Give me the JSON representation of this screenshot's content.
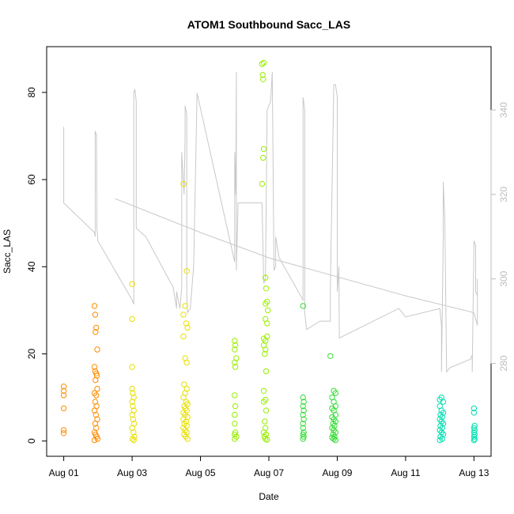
{
  "chart_data": {
    "type": "scatter",
    "title": "ATOM1 Southbound Sacc_LAS",
    "xlabel": "Date",
    "ylabel": "Sacc_LAS",
    "x_range_days": [
      -0.5,
      12.5
    ],
    "ylim": [
      -3.5,
      90.5
    ],
    "y2lim": [
      258,
      355
    ],
    "x_ticks": [
      {
        "day": 0,
        "label": "Aug 01"
      },
      {
        "day": 2,
        "label": "Aug 03"
      },
      {
        "day": 4,
        "label": "Aug 05"
      },
      {
        "day": 6,
        "label": "Aug 07"
      },
      {
        "day": 8,
        "label": "Aug 09"
      },
      {
        "day": 10,
        "label": "Aug 11"
      },
      {
        "day": 12,
        "label": "Aug 13"
      }
    ],
    "y_ticks": [
      0,
      20,
      40,
      60,
      80
    ],
    "y2_ticks": [
      280,
      300,
      320,
      340
    ],
    "y2_color": "#bdbdbd",
    "grid": false,
    "secondary_series": {
      "color": "#c8c8c8",
      "points": [
        [
          0.0,
          336
        ],
        [
          0.0,
          318
        ],
        [
          0.9,
          311
        ],
        [
          0.92,
          310
        ],
        [
          0.92,
          335
        ],
        [
          0.96,
          334
        ],
        [
          0.97,
          312
        ],
        [
          1.0,
          309
        ],
        [
          2.0,
          295
        ],
        [
          2.05,
          294
        ],
        [
          2.05,
          344
        ],
        [
          2.08,
          345
        ],
        [
          2.12,
          342
        ],
        [
          2.12,
          340
        ],
        [
          2.12,
          312
        ],
        [
          2.4,
          310
        ],
        [
          2.8,
          304
        ],
        [
          3.2,
          298
        ],
        [
          3.3,
          293
        ],
        [
          3.3,
          297
        ],
        [
          3.4,
          293
        ],
        [
          3.45,
          298
        ],
        [
          3.45,
          330
        ],
        [
          3.52,
          320
        ],
        [
          3.55,
          334
        ],
        [
          3.55,
          341
        ],
        [
          3.6,
          339
        ],
        [
          3.6,
          296
        ],
        [
          3.62,
          292
        ],
        [
          3.7,
          293
        ],
        [
          3.8,
          303
        ],
        [
          3.9,
          344
        ],
        [
          5.0,
          304
        ],
        [
          5.0,
          330
        ],
        [
          5.03,
          320
        ],
        [
          5.05,
          349
        ],
        [
          5.05,
          302
        ],
        [
          5.1,
          318
        ],
        [
          5.5,
          318
        ],
        [
          5.8,
          318
        ],
        [
          5.85,
          299
        ],
        [
          5.9,
          300
        ],
        [
          5.95,
          340
        ],
        [
          6.05,
          342
        ],
        [
          6.1,
          349
        ],
        [
          6.15,
          302
        ],
        [
          6.2,
          303
        ],
        [
          6.2,
          310
        ],
        [
          6.3,
          305
        ],
        [
          7.0,
          295
        ],
        [
          7.0,
          343
        ],
        [
          7.05,
          340
        ],
        [
          7.05,
          292
        ],
        [
          7.1,
          288
        ],
        [
          7.5,
          290
        ],
        [
          7.8,
          290
        ],
        [
          7.8,
          298
        ],
        [
          7.9,
          346
        ],
        [
          7.95,
          346
        ],
        [
          8.0,
          343
        ],
        [
          8.0,
          297
        ],
        [
          8.05,
          303
        ],
        [
          8.06,
          286
        ],
        [
          9.8,
          293
        ],
        [
          9.9,
          292
        ],
        [
          10.0,
          291
        ],
        [
          11.0,
          293
        ],
        [
          11.05,
          289
        ],
        [
          11.05,
          278
        ],
        [
          11.1,
          310
        ],
        [
          11.1,
          323
        ],
        [
          11.15,
          314
        ],
        [
          11.15,
          312
        ],
        [
          11.2,
          278
        ],
        [
          11.3,
          279
        ],
        [
          11.9,
          281
        ],
        [
          11.95,
          282
        ],
        [
          11.95,
          278
        ],
        [
          12.0,
          309
        ],
        [
          12.05,
          308
        ],
        [
          12.05,
          297
        ],
        [
          12.1,
          296
        ],
        [
          12.1,
          300
        ],
        [
          12.1,
          289
        ],
        [
          12.0,
          292
        ],
        [
          10.0,
          296
        ],
        [
          6.0,
          305
        ],
        [
          4.0,
          311
        ],
        [
          1.5,
          319
        ]
      ]
    },
    "series": [
      {
        "color": "#ff8c00",
        "points": [
          [
            0.0,
            12.5
          ],
          [
            0.0,
            11.5
          ],
          [
            0.0,
            10.5
          ],
          [
            0.0,
            7.5
          ],
          [
            0.0,
            2.5
          ],
          [
            0.0,
            1.8
          ],
          [
            0.9,
            31
          ],
          [
            0.92,
            29
          ],
          [
            0.95,
            26
          ],
          [
            0.93,
            25
          ],
          [
            0.98,
            21
          ],
          [
            0.9,
            17
          ],
          [
            0.92,
            16
          ],
          [
            0.95,
            15.5
          ],
          [
            0.97,
            15
          ],
          [
            0.93,
            14
          ],
          [
            0.98,
            12
          ],
          [
            0.9,
            11
          ],
          [
            0.95,
            10.5
          ],
          [
            0.92,
            9
          ],
          [
            0.96,
            8
          ],
          [
            0.9,
            7
          ],
          [
            0.94,
            6
          ],
          [
            0.98,
            5
          ],
          [
            0.92,
            4
          ],
          [
            0.95,
            3
          ],
          [
            0.9,
            2
          ],
          [
            0.93,
            1.5
          ],
          [
            0.96,
            1
          ],
          [
            0.99,
            0.5
          ],
          [
            0.9,
            0.2
          ]
        ]
      },
      {
        "color": "#e8e000",
        "points": [
          [
            2.0,
            36
          ],
          [
            2.0,
            28
          ],
          [
            2.0,
            17
          ],
          [
            2.0,
            12
          ],
          [
            2.02,
            11
          ],
          [
            2.05,
            10
          ],
          [
            2.0,
            9
          ],
          [
            2.02,
            8
          ],
          [
            2.05,
            7
          ],
          [
            2.0,
            6
          ],
          [
            2.03,
            5
          ],
          [
            2.06,
            4
          ],
          [
            2.0,
            3
          ],
          [
            2.04,
            2
          ],
          [
            2.07,
            1
          ],
          [
            2.01,
            0.5
          ],
          [
            2.05,
            0.2
          ],
          [
            3.5,
            59
          ],
          [
            3.6,
            39
          ],
          [
            3.55,
            31
          ],
          [
            3.5,
            29
          ],
          [
            3.58,
            27
          ],
          [
            3.62,
            26
          ],
          [
            3.5,
            24
          ],
          [
            3.55,
            19
          ],
          [
            3.6,
            18
          ],
          [
            3.52,
            13
          ],
          [
            3.6,
            12
          ],
          [
            3.55,
            11
          ],
          [
            3.5,
            10
          ],
          [
            3.58,
            9
          ],
          [
            3.62,
            8.5
          ],
          [
            3.52,
            8
          ],
          [
            3.56,
            7.5
          ],
          [
            3.6,
            7
          ],
          [
            3.5,
            6.5
          ],
          [
            3.55,
            6
          ],
          [
            3.62,
            5.5
          ],
          [
            3.5,
            5
          ],
          [
            3.58,
            4.5
          ],
          [
            3.53,
            4
          ],
          [
            3.6,
            3.5
          ],
          [
            3.5,
            3
          ],
          [
            3.55,
            2.5
          ],
          [
            3.6,
            2
          ],
          [
            3.52,
            1.5
          ],
          [
            3.57,
            1
          ],
          [
            3.62,
            0.5
          ]
        ]
      },
      {
        "color": "#99ee00",
        "points": [
          [
            5.0,
            23
          ],
          [
            5.02,
            22
          ],
          [
            5.0,
            21
          ],
          [
            5.05,
            19
          ],
          [
            5.0,
            18
          ],
          [
            5.02,
            17
          ],
          [
            5.0,
            10.5
          ],
          [
            5.02,
            8
          ],
          [
            5.0,
            6
          ],
          [
            5.0,
            4
          ],
          [
            5.02,
            2
          ],
          [
            5.0,
            1.5
          ],
          [
            5.05,
            1
          ],
          [
            5.0,
            0.5
          ],
          [
            5.8,
            86.5
          ],
          [
            5.85,
            86.8
          ],
          [
            5.82,
            84
          ],
          [
            5.83,
            83
          ],
          [
            5.85,
            67
          ],
          [
            5.83,
            65
          ],
          [
            5.8,
            59
          ],
          [
            5.9,
            37.5
          ],
          [
            5.92,
            35
          ],
          [
            5.95,
            32
          ],
          [
            5.9,
            31.5
          ],
          [
            5.97,
            30
          ],
          [
            5.9,
            28
          ],
          [
            5.95,
            27
          ],
          [
            5.85,
            23.5
          ],
          [
            5.9,
            23
          ],
          [
            5.95,
            24
          ],
          [
            5.85,
            22
          ],
          [
            5.9,
            21
          ],
          [
            5.88,
            20
          ],
          [
            5.92,
            16
          ],
          [
            5.85,
            11.5
          ],
          [
            5.9,
            9.5
          ],
          [
            5.85,
            9
          ],
          [
            5.92,
            7
          ],
          [
            5.88,
            4.5
          ],
          [
            5.9,
            3
          ],
          [
            5.85,
            2
          ],
          [
            5.92,
            1.5
          ],
          [
            5.87,
            1
          ],
          [
            5.9,
            0.5
          ],
          [
            5.95,
            0.3
          ]
        ]
      },
      {
        "color": "#33dd33",
        "points": [
          [
            7.0,
            31
          ],
          [
            7.0,
            10
          ],
          [
            7.02,
            9
          ],
          [
            7.0,
            8
          ],
          [
            7.02,
            7
          ],
          [
            7.0,
            6
          ],
          [
            7.02,
            5
          ],
          [
            7.0,
            4
          ],
          [
            7.0,
            3
          ],
          [
            7.02,
            2
          ],
          [
            7.0,
            1.5
          ],
          [
            7.02,
            1
          ],
          [
            7.0,
            0.5
          ],
          [
            7.8,
            19.5
          ],
          [
            7.9,
            11.5
          ],
          [
            7.95,
            11
          ],
          [
            7.85,
            10
          ],
          [
            7.9,
            9
          ],
          [
            7.95,
            8
          ],
          [
            7.85,
            7.5
          ],
          [
            7.9,
            7
          ],
          [
            7.95,
            6
          ],
          [
            7.85,
            5.5
          ],
          [
            7.9,
            5
          ],
          [
            7.95,
            4.5
          ],
          [
            7.88,
            4
          ],
          [
            7.92,
            3.5
          ],
          [
            7.85,
            3
          ],
          [
            7.9,
            2.5
          ],
          [
            7.95,
            2
          ],
          [
            7.88,
            1.5
          ],
          [
            7.92,
            1
          ],
          [
            7.85,
            0.8
          ],
          [
            7.9,
            0.5
          ],
          [
            7.95,
            0.2
          ]
        ]
      },
      {
        "color": "#00e0b0",
        "points": [
          [
            11.0,
            9.5
          ],
          [
            11.05,
            10
          ],
          [
            11.1,
            9
          ],
          [
            11.0,
            8
          ],
          [
            11.05,
            7
          ],
          [
            11.1,
            6.5
          ],
          [
            11.02,
            6
          ],
          [
            11.07,
            5.5
          ],
          [
            11.0,
            5
          ],
          [
            11.05,
            4.5
          ],
          [
            11.1,
            4
          ],
          [
            11.02,
            3.5
          ],
          [
            11.07,
            3
          ],
          [
            11.0,
            2.5
          ],
          [
            11.05,
            2
          ],
          [
            11.1,
            1.5
          ],
          [
            11.02,
            1
          ],
          [
            11.07,
            0.5
          ],
          [
            11.0,
            0.2
          ],
          [
            12.0,
            7.5
          ],
          [
            12.0,
            6.5
          ],
          [
            12.02,
            3.5
          ],
          [
            12.0,
            3
          ],
          [
            12.02,
            2.5
          ],
          [
            12.0,
            2
          ],
          [
            12.02,
            1.5
          ],
          [
            12.0,
            1
          ],
          [
            12.02,
            0.5
          ],
          [
            12.0,
            0.2
          ]
        ]
      }
    ]
  }
}
